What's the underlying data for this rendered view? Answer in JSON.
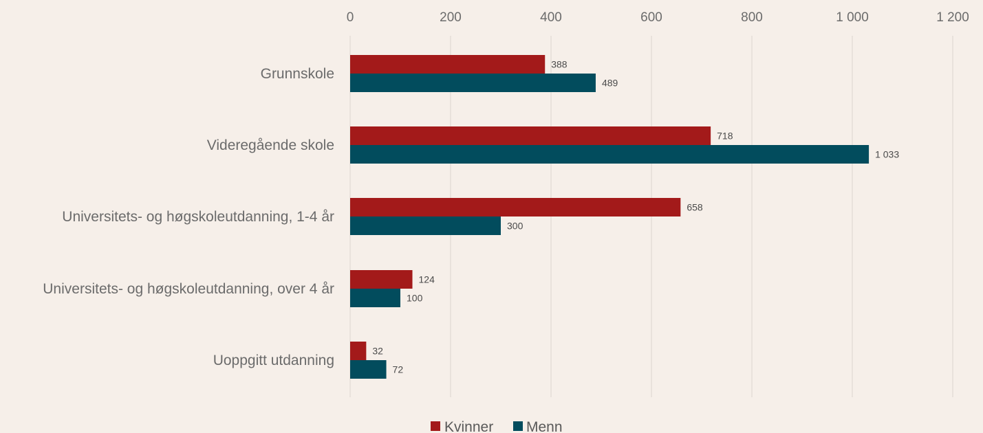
{
  "chart_data": {
    "type": "bar",
    "orientation": "horizontal",
    "title": "",
    "xlabel": "",
    "ylabel": "",
    "xlim": [
      0,
      1200
    ],
    "x_ticks": [
      0,
      200,
      400,
      600,
      800,
      1000,
      1200
    ],
    "x_tick_labels": [
      "0",
      "200",
      "400",
      "600",
      "800",
      "1 000",
      "1 200"
    ],
    "axis_position": "top",
    "grid": true,
    "legend_position": "bottom",
    "categories": [
      "Grunnskole",
      "Videregående skole",
      "Universitets- og høgskoleutdanning, 1-4 år",
      "Universitets- og høgskoleutdanning, over 4 år",
      "Uoppgitt utdanning"
    ],
    "series": [
      {
        "name": "Kvinner",
        "color": "#a31a1a",
        "values": [
          388,
          718,
          658,
          124,
          32
        ],
        "labels": [
          "388",
          "718",
          "658",
          "124",
          "32"
        ]
      },
      {
        "name": "Menn",
        "color": "#024c5d",
        "values": [
          489,
          1033,
          300,
          100,
          72
        ],
        "labels": [
          "489",
          "1 033",
          "300",
          "100",
          "72"
        ]
      }
    ]
  },
  "colors": {
    "background": "#f6efe9",
    "gridline": "#dcd5cf",
    "text": "#6b6b6b"
  }
}
